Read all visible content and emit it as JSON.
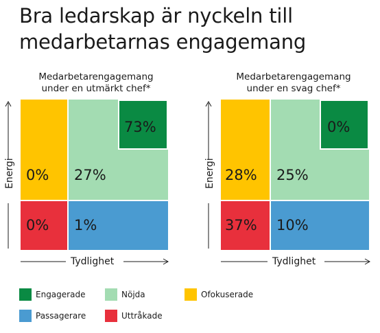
{
  "title_line1": "Bra ledarskap är nyckeln till",
  "title_line2": "medarbetarnas engagemang",
  "colors": {
    "engagerade": "#0a8a43",
    "nojda": "#a3dcb2",
    "ofokuserade": "#ffc400",
    "passagerare": "#4a9bd1",
    "uttrakade": "#e8303c"
  },
  "legend": [
    {
      "key": "engagerade",
      "label": "Engagerade",
      "color": "#0a8a43"
    },
    {
      "key": "nojda",
      "label": "Nöjda",
      "color": "#a3dcb2"
    },
    {
      "key": "ofokuserade",
      "label": "Ofokuserade",
      "color": "#ffc400"
    },
    {
      "key": "passagerare",
      "label": "Passagerare",
      "color": "#4a9bd1"
    },
    {
      "key": "uttrakade",
      "label": "Uttråkade",
      "color": "#e8303c"
    }
  ],
  "chart_data": [
    {
      "type": "table",
      "title_line1": "Medarbetarengagemang",
      "title_line2": "under en utmärkt chef*",
      "xlabel": "Tydlighet",
      "ylabel": "Energi",
      "values": {
        "engagerade": "73%",
        "nojda": "27%",
        "ofokuserade": "0%",
        "uttrakade": "0%",
        "passagerare": "1%"
      }
    },
    {
      "type": "table",
      "title_line1": "Medarbetarengagemang",
      "title_line2": "under en svag chef*",
      "xlabel": "Tydlighet",
      "ylabel": "Energi",
      "values": {
        "engagerade": "0%",
        "nojda": "25%",
        "ofokuserade": "28%",
        "uttrakade": "37%",
        "passagerare": "10%"
      }
    }
  ]
}
